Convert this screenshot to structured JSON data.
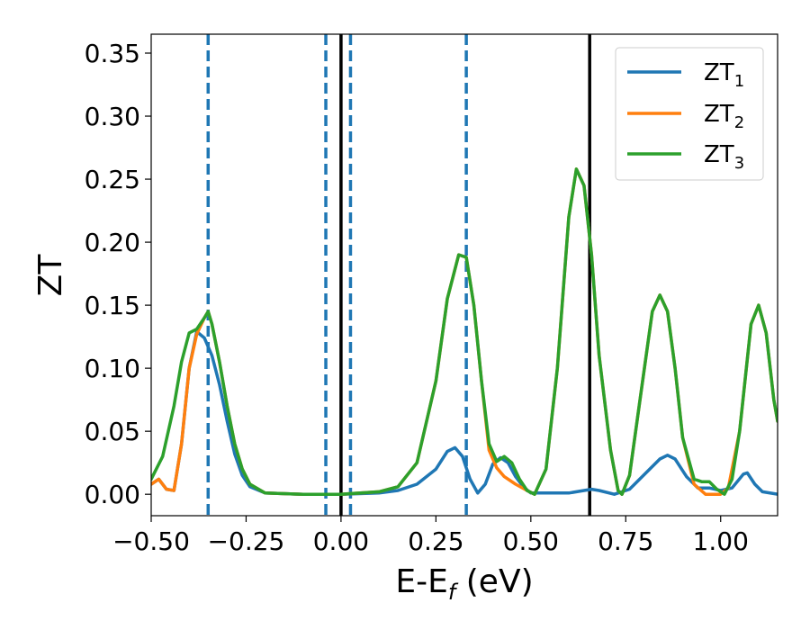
{
  "chart_data": {
    "type": "line",
    "xlabel": "E-E_f (eV)",
    "ylabel": "ZT",
    "xlim": [
      -0.5,
      1.15
    ],
    "ylim": [
      -0.017,
      0.365
    ],
    "x_ticks": [
      -0.5,
      -0.25,
      0.0,
      0.25,
      0.5,
      0.75,
      1.0
    ],
    "x_tick_labels": [
      "−0.50",
      "−0.25",
      "0.00",
      "0.25",
      "0.50",
      "0.75",
      "1.00"
    ],
    "y_ticks": [
      0.0,
      0.05,
      0.1,
      0.15,
      0.2,
      0.25,
      0.3,
      0.35
    ],
    "y_tick_labels": [
      "0.00",
      "0.05",
      "0.10",
      "0.15",
      "0.20",
      "0.25",
      "0.30",
      "0.35"
    ],
    "grid": false,
    "legend_position": "top-right",
    "series": [
      {
        "name": "ZT1",
        "color": "#1f77b4",
        "points": [
          [
            -0.5,
            0.008
          ],
          [
            -0.48,
            0.012
          ],
          [
            -0.46,
            0.004
          ],
          [
            -0.44,
            0.003
          ],
          [
            -0.42,
            0.04
          ],
          [
            -0.4,
            0.1
          ],
          [
            -0.38,
            0.129
          ],
          [
            -0.36,
            0.124
          ],
          [
            -0.34,
            0.11
          ],
          [
            -0.32,
            0.087
          ],
          [
            -0.3,
            0.058
          ],
          [
            -0.28,
            0.032
          ],
          [
            -0.26,
            0.015
          ],
          [
            -0.24,
            0.006
          ],
          [
            -0.2,
            0.001
          ],
          [
            -0.1,
            0.0
          ],
          [
            0.0,
            0.0
          ],
          [
            0.1,
            0.001
          ],
          [
            0.15,
            0.003
          ],
          [
            0.2,
            0.008
          ],
          [
            0.25,
            0.02
          ],
          [
            0.28,
            0.034
          ],
          [
            0.3,
            0.037
          ],
          [
            0.32,
            0.03
          ],
          [
            0.34,
            0.012
          ],
          [
            0.36,
            0.001
          ],
          [
            0.38,
            0.008
          ],
          [
            0.4,
            0.024
          ],
          [
            0.42,
            0.029
          ],
          [
            0.44,
            0.025
          ],
          [
            0.46,
            0.014
          ],
          [
            0.48,
            0.006
          ],
          [
            0.5,
            0.001
          ],
          [
            0.55,
            0.001
          ],
          [
            0.6,
            0.001
          ],
          [
            0.64,
            0.003
          ],
          [
            0.66,
            0.004
          ],
          [
            0.68,
            0.003
          ],
          [
            0.72,
            0.0
          ],
          [
            0.76,
            0.004
          ],
          [
            0.8,
            0.016
          ],
          [
            0.84,
            0.028
          ],
          [
            0.86,
            0.031
          ],
          [
            0.88,
            0.028
          ],
          [
            0.91,
            0.014
          ],
          [
            0.94,
            0.005
          ],
          [
            0.97,
            0.005
          ],
          [
            1.0,
            0.003
          ],
          [
            1.03,
            0.005
          ],
          [
            1.06,
            0.016
          ],
          [
            1.07,
            0.017
          ],
          [
            1.09,
            0.008
          ],
          [
            1.11,
            0.002
          ],
          [
            1.15,
            0.0
          ]
        ]
      },
      {
        "name": "ZT2",
        "color": "#ff7f0e",
        "points": [
          [
            -0.5,
            0.008
          ],
          [
            -0.48,
            0.012
          ],
          [
            -0.46,
            0.004
          ],
          [
            -0.44,
            0.003
          ],
          [
            -0.42,
            0.04
          ],
          [
            -0.4,
            0.1
          ],
          [
            -0.38,
            0.127
          ],
          [
            -0.36,
            0.14
          ],
          [
            -0.35,
            0.145
          ],
          [
            -0.34,
            0.135
          ],
          [
            -0.32,
            0.105
          ],
          [
            -0.3,
            0.07
          ],
          [
            -0.28,
            0.04
          ],
          [
            -0.26,
            0.02
          ],
          [
            -0.24,
            0.008
          ],
          [
            -0.2,
            0.001
          ],
          [
            -0.1,
            0.0
          ],
          [
            0.0,
            0.0
          ],
          [
            0.1,
            0.002
          ],
          [
            0.15,
            0.006
          ],
          [
            0.2,
            0.025
          ],
          [
            0.25,
            0.09
          ],
          [
            0.28,
            0.155
          ],
          [
            0.31,
            0.19
          ],
          [
            0.33,
            0.188
          ],
          [
            0.35,
            0.15
          ],
          [
            0.37,
            0.09
          ],
          [
            0.39,
            0.035
          ],
          [
            0.41,
            0.021
          ],
          [
            0.43,
            0.014
          ],
          [
            0.46,
            0.008
          ],
          [
            0.49,
            0.003
          ],
          [
            0.51,
            0.0
          ],
          [
            0.54,
            0.02
          ],
          [
            0.57,
            0.1
          ],
          [
            0.6,
            0.22
          ],
          [
            0.62,
            0.258
          ],
          [
            0.64,
            0.245
          ],
          [
            0.66,
            0.19
          ],
          [
            0.68,
            0.11
          ],
          [
            0.71,
            0.035
          ],
          [
            0.73,
            0.003
          ],
          [
            0.74,
            0.0
          ],
          [
            0.76,
            0.015
          ],
          [
            0.79,
            0.08
          ],
          [
            0.82,
            0.145
          ],
          [
            0.84,
            0.158
          ],
          [
            0.86,
            0.145
          ],
          [
            0.88,
            0.1
          ],
          [
            0.9,
            0.045
          ],
          [
            0.93,
            0.008
          ],
          [
            0.96,
            0.0
          ],
          [
            0.98,
            0.0
          ],
          [
            1.0,
            0.0
          ],
          [
            1.02,
            0.005
          ],
          [
            1.05,
            0.05
          ],
          [
            1.08,
            0.135
          ],
          [
            1.1,
            0.15
          ],
          [
            1.12,
            0.128
          ],
          [
            1.14,
            0.075
          ],
          [
            1.15,
            0.058
          ]
        ]
      },
      {
        "name": "ZT3",
        "color": "#2ca02c",
        "points": [
          [
            -0.5,
            0.012
          ],
          [
            -0.47,
            0.03
          ],
          [
            -0.44,
            0.07
          ],
          [
            -0.42,
            0.105
          ],
          [
            -0.4,
            0.128
          ],
          [
            -0.38,
            0.131
          ],
          [
            -0.36,
            0.14
          ],
          [
            -0.35,
            0.145
          ],
          [
            -0.34,
            0.135
          ],
          [
            -0.32,
            0.105
          ],
          [
            -0.3,
            0.07
          ],
          [
            -0.28,
            0.04
          ],
          [
            -0.26,
            0.02
          ],
          [
            -0.24,
            0.008
          ],
          [
            -0.2,
            0.001
          ],
          [
            -0.1,
            0.0
          ],
          [
            0.0,
            0.0
          ],
          [
            0.1,
            0.002
          ],
          [
            0.15,
            0.006
          ],
          [
            0.2,
            0.025
          ],
          [
            0.25,
            0.09
          ],
          [
            0.28,
            0.155
          ],
          [
            0.31,
            0.19
          ],
          [
            0.33,
            0.188
          ],
          [
            0.35,
            0.15
          ],
          [
            0.37,
            0.09
          ],
          [
            0.39,
            0.04
          ],
          [
            0.41,
            0.026
          ],
          [
            0.43,
            0.03
          ],
          [
            0.45,
            0.025
          ],
          [
            0.47,
            0.012
          ],
          [
            0.49,
            0.003
          ],
          [
            0.51,
            0.0
          ],
          [
            0.54,
            0.02
          ],
          [
            0.57,
            0.1
          ],
          [
            0.6,
            0.22
          ],
          [
            0.62,
            0.258
          ],
          [
            0.64,
            0.245
          ],
          [
            0.66,
            0.19
          ],
          [
            0.68,
            0.11
          ],
          [
            0.71,
            0.035
          ],
          [
            0.73,
            0.003
          ],
          [
            0.74,
            0.0
          ],
          [
            0.76,
            0.015
          ],
          [
            0.79,
            0.08
          ],
          [
            0.82,
            0.145
          ],
          [
            0.84,
            0.158
          ],
          [
            0.86,
            0.145
          ],
          [
            0.88,
            0.1
          ],
          [
            0.9,
            0.045
          ],
          [
            0.93,
            0.012
          ],
          [
            0.95,
            0.01
          ],
          [
            0.97,
            0.01
          ],
          [
            0.99,
            0.004
          ],
          [
            1.01,
            0.0
          ],
          [
            1.03,
            0.012
          ],
          [
            1.05,
            0.05
          ],
          [
            1.08,
            0.135
          ],
          [
            1.1,
            0.15
          ],
          [
            1.12,
            0.128
          ],
          [
            1.14,
            0.075
          ],
          [
            1.15,
            0.058
          ]
        ]
      }
    ],
    "vertical_lines": [
      {
        "x": -0.35,
        "style": "dashed",
        "color": "#1f77b4"
      },
      {
        "x": -0.04,
        "style": "dashed",
        "color": "#1f77b4"
      },
      {
        "x": 0.0,
        "style": "solid",
        "color": "#000000"
      },
      {
        "x": 0.025,
        "style": "dashed",
        "color": "#1f77b4"
      },
      {
        "x": 0.33,
        "style": "dashed",
        "color": "#1f77b4"
      },
      {
        "x": 0.655,
        "style": "solid",
        "color": "#000000"
      }
    ]
  },
  "legend": [
    {
      "base": "ZT",
      "sub": "1"
    },
    {
      "base": "ZT",
      "sub": "2"
    },
    {
      "base": "ZT",
      "sub": "3"
    }
  ],
  "axis_labels": {
    "x_main": "E-E",
    "x_sub": "f",
    "x_unit": " (eV)",
    "y": "ZT"
  }
}
